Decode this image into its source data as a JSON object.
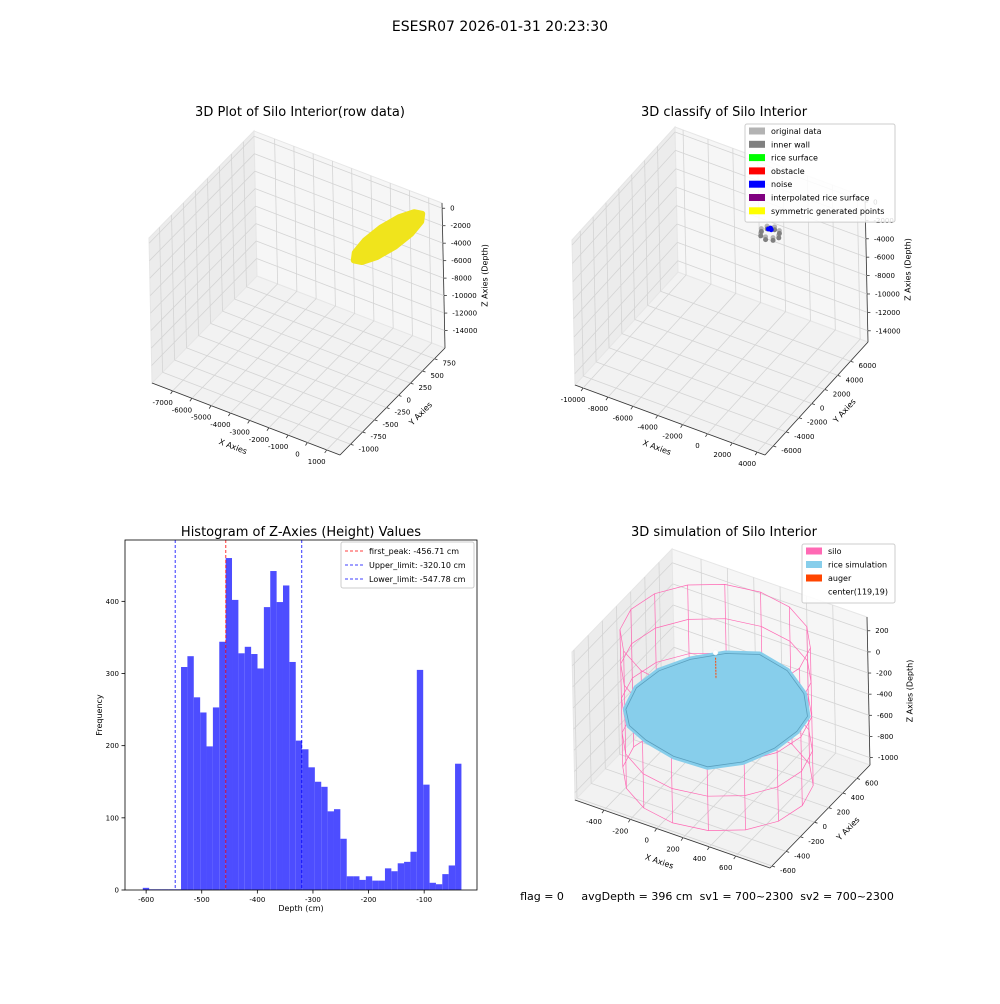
{
  "title": "ESESR07 2026-01-31 20:23:30",
  "status": "flag = 0     avgDepth = 396 cm  sv1 = 700~2300  sv2 = 700~2300",
  "chart_data": [
    {
      "type": "scatter3d",
      "title": "3D Plot of Silo Interior(row data)",
      "xlabel": "X Axies",
      "ylabel": "Y Axies",
      "zlabel": "Z Axies (Depth)",
      "xlim": [
        -8070,
        1690
      ],
      "ylim": [
        -1220,
        970
      ],
      "zlim": [
        -16000,
        600
      ],
      "xticks": [
        -7000,
        -6000,
        -5000,
        -4000,
        -3000,
        -2000,
        -1000,
        0,
        1000
      ],
      "yticks": [
        -1000,
        -750,
        -500,
        -250,
        0,
        250,
        500,
        750
      ],
      "zticks": [
        0,
        -2000,
        -4000,
        -6000,
        -8000,
        -10000,
        -12000,
        -14000
      ],
      "grid": true,
      "series": [
        {
          "color": "#f0e41c",
          "style": "surface",
          "x": [
            646,
            696,
            471,
            31,
            -505,
            -994,
            -1306,
            -1356,
            -1131,
            -691,
            -155,
            334
          ],
          "y": [
            969,
            925,
            805,
            641,
            477,
            357,
            313,
            357,
            477,
            641,
            805,
            925
          ],
          "z": [
            -1510,
            -2122,
            -3015,
            -3950,
            -4675,
            -4998,
            -4830,
            -4218,
            -3325,
            -2390,
            -1665,
            -1342
          ]
        }
      ]
    },
    {
      "type": "scatter3d",
      "title": "3D classify of Silo Interior",
      "xlabel": "X Axies",
      "ylabel": "Y Axies",
      "zlabel": "Z Axies (Depth)",
      "xlim": [
        -10650,
        4630
      ],
      "ylim": [
        -7280,
        8720
      ],
      "zlim": [
        -15220,
        540
      ],
      "xticks": [
        -10000,
        -8000,
        -6000,
        -4000,
        -2000,
        0,
        2000,
        4000
      ],
      "yticks": [
        -6000,
        -4000,
        -2000,
        0,
        2000,
        4000,
        6000
      ],
      "zticks": [
        0,
        -2000,
        -4000,
        -6000,
        -8000,
        -10000,
        -12000,
        -14000
      ],
      "grid": true,
      "legend": "upper right",
      "series": [
        {
          "name": "original data",
          "color": "#b3b3b3",
          "style": "points",
          "x": [
            990,
            785,
            290,
            -205,
            -410,
            -205,
            290,
            785
          ],
          "y": [
            2320,
            2815,
            3020,
            2815,
            2320,
            1825,
            1620,
            1825
          ],
          "z": [
            -500,
            -500,
            -500,
            -500,
            -500,
            -500,
            -500,
            -500
          ]
        },
        {
          "name": "inner wall",
          "color": "#808080",
          "style": "points",
          "x": [
            990,
            785,
            290,
            -205,
            -410,
            -205,
            290,
            785
          ],
          "y": [
            2320,
            2815,
            3020,
            2815,
            2320,
            1825,
            1620,
            1825
          ],
          "z": [
            -800,
            -800,
            -800,
            -800,
            -800,
            -800,
            -800,
            -800
          ]
        },
        {
          "name": "rice surface",
          "color": "#00ff00",
          "style": "points",
          "x": [],
          "y": [],
          "z": []
        },
        {
          "name": "obstacle",
          "color": "#ff0000",
          "style": "points",
          "x": [],
          "y": [],
          "z": []
        },
        {
          "name": "noise",
          "color": "#0000ff",
          "style": "points",
          "x": [
            290,
            400,
            200
          ],
          "y": [
            2400,
            2300,
            2250
          ],
          "z": [
            -150,
            -200,
            -180
          ]
        },
        {
          "name": "interpolated rice surface",
          "color": "#800080",
          "style": "points",
          "x": [],
          "y": [],
          "z": []
        },
        {
          "name": "symmetric generated points",
          "color": "#ffff00",
          "style": "points",
          "x": [],
          "y": [],
          "z": []
        }
      ]
    },
    {
      "type": "histogram",
      "title": "Histogram of Z-Axies (Height) Values",
      "xlabel": "Depth (cm)",
      "ylabel": "Frequency",
      "color": "#4d4dff",
      "xlim": [
        -638,
        -5
      ],
      "ylim": [
        0,
        485
      ],
      "xticks": [
        -600,
        -500,
        -400,
        -300,
        -200,
        -100
      ],
      "yticks": [
        0,
        100,
        200,
        300,
        400
      ],
      "legend": "upper right",
      "bins": [
        -606.0,
        -594.54,
        -583.08,
        -571.62,
        -560.16,
        -548.7,
        -537.24,
        -525.78,
        -514.32,
        -502.86,
        -491.4,
        -479.94,
        -468.48,
        -457.02,
        -445.56,
        -434.1,
        -422.64,
        -411.18,
        -399.72,
        -388.26,
        -376.8,
        -365.34,
        -353.88,
        -342.42,
        -330.96,
        -319.5,
        -308.04,
        -296.58,
        -285.12,
        -273.66,
        -262.2,
        -250.74,
        -239.28,
        -227.82,
        -216.36,
        -204.9,
        -193.44,
        -181.98,
        -170.52,
        -159.06,
        -147.6,
        -136.14,
        -124.68,
        -113.22,
        -101.76,
        -90.3,
        -78.84,
        -67.38,
        -55.92,
        -44.46,
        -33.0
      ],
      "counts": [
        3,
        1,
        1,
        1,
        1,
        1,
        309,
        324,
        267,
        246,
        199,
        253,
        344,
        460,
        402,
        328,
        337,
        327,
        307,
        392,
        442,
        399,
        422,
        316,
        207,
        195,
        170,
        150,
        143,
        109,
        112,
        71,
        19,
        19,
        14,
        19,
        13,
        13,
        30,
        26,
        37,
        39,
        53,
        305,
        146,
        10,
        8,
        22,
        34,
        175
      ],
      "vlines": [
        {
          "label": "first_peak: -456.71 cm",
          "value": -456.71,
          "color": "#ff0000"
        },
        {
          "label": "Upper_limit: -320.10 cm",
          "value": -320.1,
          "color": "#0000ff"
        },
        {
          "label": "Lower_limit: -547.78 cm",
          "value": -547.78,
          "color": "#0000ff"
        }
      ]
    },
    {
      "type": "scatter3d",
      "title": "3D simulation of Silo Interior",
      "xlabel": "X Axies",
      "ylabel": "Y Axies",
      "zlabel": "Z Axies (Depth)",
      "xlim": [
        -620,
        860
      ],
      "ylim": [
        -628,
        784
      ],
      "zlim": [
        -1070,
        330
      ],
      "xticks": [
        -400,
        -200,
        0,
        200,
        400,
        600
      ],
      "yticks": [
        -600,
        -400,
        -200,
        0,
        200,
        400,
        600
      ],
      "zticks": [
        200,
        0,
        -200,
        -400,
        -600,
        -800,
        -1000
      ],
      "grid": true,
      "legend": "upper right",
      "series": [
        {
          "name": "silo",
          "color": "#ff69b4",
          "style": "wireframe",
          "x": [
            759,
            710,
            571,
            364,
            119,
            -126,
            -333,
            -472,
            -521,
            -472,
            -333,
            -126,
            119,
            364,
            571,
            710
          ],
          "y": [
            19,
            264,
            471,
            610,
            659,
            610,
            471,
            264,
            19,
            -226,
            -433,
            -572,
            -621,
            -572,
            -433,
            -226
          ],
          "z_range": [
            -970,
            330
          ]
        },
        {
          "name": "rice simulation",
          "color": "#87ceeb",
          "style": "surface",
          "x": [
            729,
            683,
            550,
            353,
            119,
            -115,
            -312,
            -445,
            -491,
            -445,
            -312,
            -115,
            119,
            353,
            550,
            683
          ],
          "y": [
            19,
            253,
            450,
            583,
            629,
            583,
            450,
            253,
            19,
            -215,
            -412,
            -545,
            -591,
            -545,
            -412,
            -215
          ],
          "z": [
            -280,
            -320,
            -300,
            -260,
            -240,
            -300,
            -350,
            -380,
            -400,
            -420,
            -380,
            -340,
            -360,
            -390,
            -350,
            -300
          ]
        },
        {
          "name": "auger",
          "color": "#ff4500",
          "style": "line",
          "x": [
            119,
            119
          ],
          "y": [
            19,
            19
          ],
          "z": [
            150,
            -50
          ]
        },
        {
          "name": "center(119,19)",
          "color": "#ffffff",
          "style": "points",
          "x": [
            119
          ],
          "y": [
            19
          ],
          "z": [
            200
          ]
        }
      ]
    }
  ]
}
